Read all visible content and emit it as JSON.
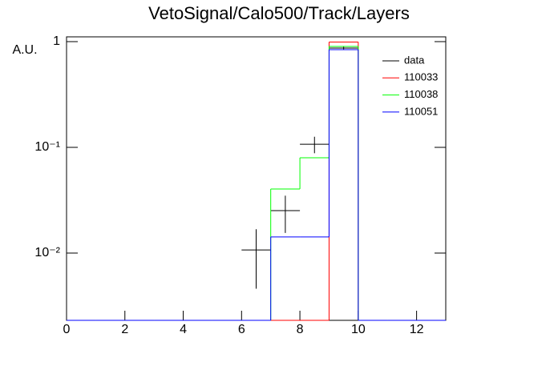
{
  "chart_data": {
    "type": "histogram",
    "title": "VetoSignal/Calo500/Track/Layers",
    "ylabel": "A.U.",
    "log_y": true,
    "xlim": [
      0,
      13
    ],
    "ylim": [
      0.00231,
      1.11
    ],
    "xticks": [
      0,
      2,
      4,
      6,
      8,
      10,
      12
    ],
    "yticks": [
      1,
      {
        "value": 0.1,
        "label": "10⁻¹"
      },
      {
        "value": 0.01,
        "label": "10⁻²"
      }
    ],
    "legend": "upper right",
    "bins": [
      0,
      1,
      2,
      3,
      4,
      5,
      6,
      7,
      8,
      9,
      10,
      11,
      12,
      13
    ],
    "series": [
      {
        "name": "data",
        "color": "#000000",
        "kind": "points",
        "x": [
          6.5,
          7.5,
          8.5,
          9.5
        ],
        "values": [
          0.0107,
          0.0252,
          0.107,
          0.87
        ],
        "errors": [
          0.0061,
          0.0097,
          0.019,
          0.03
        ],
        "xerr": 0.5
      },
      {
        "name": "110033",
        "color": "#ff0000",
        "values": [
          0,
          0,
          0,
          0,
          0,
          0,
          0,
          0,
          0,
          0.99,
          0,
          0,
          0
        ]
      },
      {
        "name": "110038",
        "color": "#00ff00",
        "values": [
          0,
          0,
          0,
          0,
          0,
          0,
          0,
          0.0404,
          0.0797,
          0.9,
          0,
          0,
          0
        ]
      },
      {
        "name": "110051",
        "color": "#0000ff",
        "values": [
          0,
          0,
          0,
          0,
          0,
          0,
          0,
          0.0142,
          0.0142,
          0.84,
          0,
          0,
          0
        ]
      }
    ]
  }
}
